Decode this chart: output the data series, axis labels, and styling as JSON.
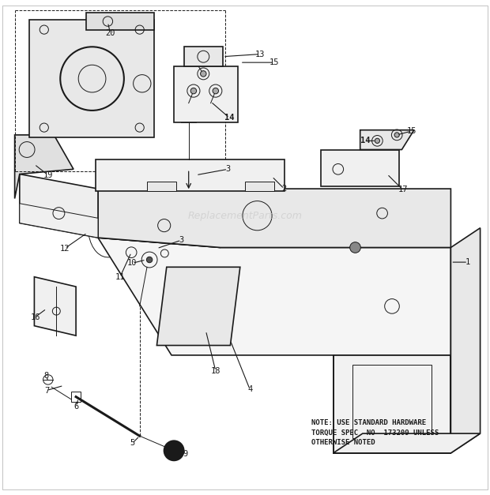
{
  "bg_color": "#ffffff",
  "line_color": "#1a1a1a",
  "note_text": "NOTE: USE STANDARD HARDWARE\nTORQUE SPEC  NO  173209 UNLESS\nOTHERWISE NOTED",
  "watermark": "ReplacementParts.com",
  "figsize": [
    6.2,
    6.27
  ],
  "dpi": 100
}
